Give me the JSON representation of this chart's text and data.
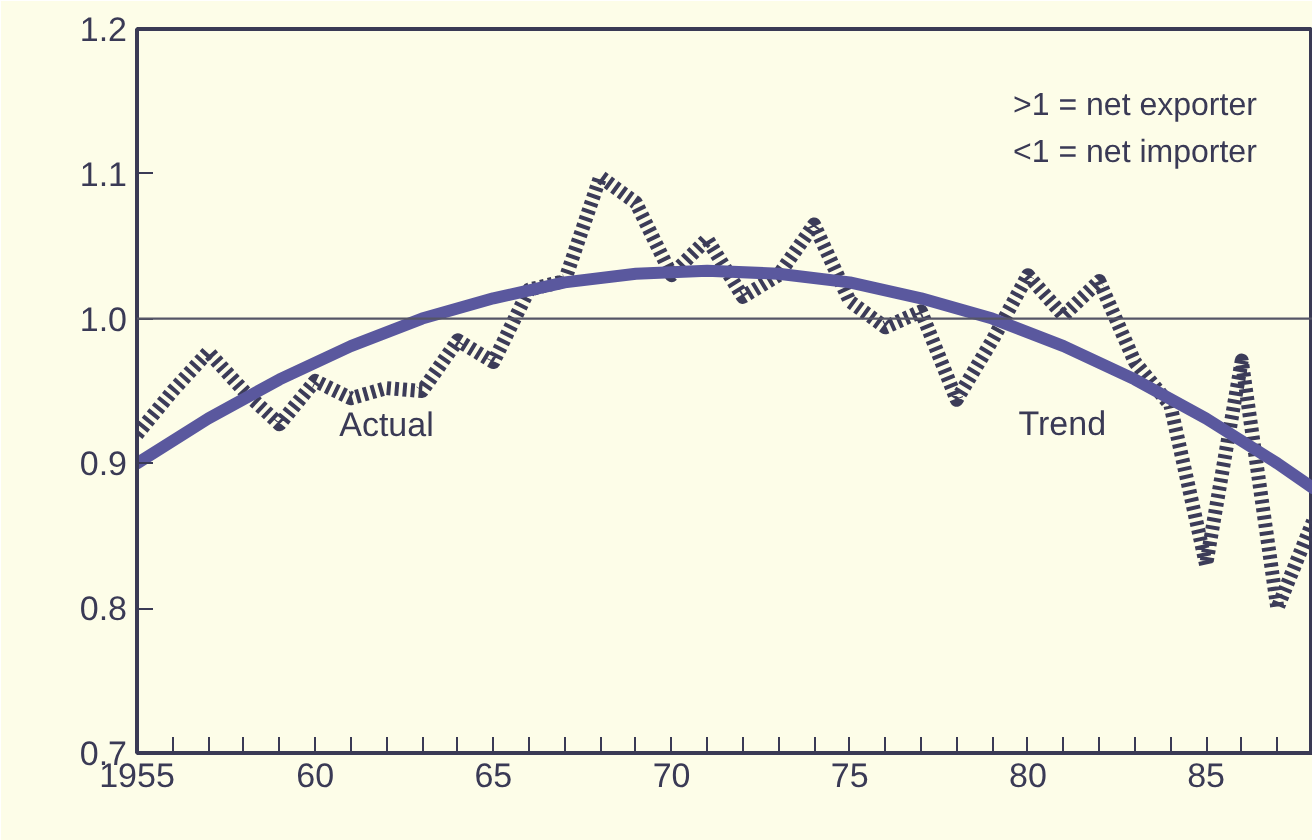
{
  "chart_data": {
    "type": "line",
    "x": [
      1955,
      1956,
      1957,
      1958,
      1959,
      1960,
      1961,
      1962,
      1963,
      1964,
      1965,
      1966,
      1967,
      1968,
      1969,
      1970,
      1971,
      1972,
      1973,
      1974,
      1975,
      1976,
      1977,
      1978,
      1979,
      1980,
      1981,
      1982,
      1983,
      1984,
      1985,
      1986,
      1987,
      1988
    ],
    "series": [
      {
        "name": "Actual",
        "color": "#3c3c58",
        "line_style": "dotted",
        "values": [
          0.92,
          0.95,
          0.977,
          0.95,
          0.927,
          0.957,
          0.945,
          0.952,
          0.95,
          0.985,
          0.97,
          1.02,
          1.026,
          1.098,
          1.08,
          1.03,
          1.055,
          1.015,
          1.03,
          1.065,
          1.012,
          0.994,
          1.005,
          0.944,
          0.985,
          1.03,
          1.002,
          1.026,
          0.97,
          0.94,
          0.83,
          0.971,
          0.8,
          0.86
        ]
      },
      {
        "name": "Trend",
        "color": "#5a589e",
        "line_style": "solid",
        "x": [
          1955,
          1957,
          1959,
          1961,
          1963,
          1965,
          1967,
          1969,
          1971,
          1973,
          1975,
          1977,
          1979,
          1981,
          1983,
          1985,
          1987,
          1988
        ],
        "values": [
          0.9,
          0.931,
          0.958,
          0.981,
          1.0,
          1.014,
          1.025,
          1.031,
          1.033,
          1.031,
          1.025,
          1.014,
          1.0,
          0.981,
          0.958,
          0.931,
          0.9,
          0.883
        ]
      }
    ],
    "xlim": [
      1955,
      1988
    ],
    "ylim": [
      0.7,
      1.2
    ],
    "xticks": [
      1955,
      {
        "value": 1956,
        "label": null
      },
      {
        "value": 1957,
        "label": null
      },
      {
        "value": 1958,
        "label": null
      },
      {
        "value": 1959,
        "label": null
      },
      {
        "value": 1960,
        "label": "60"
      },
      {
        "value": 1961,
        "label": null
      },
      {
        "value": 1962,
        "label": null
      },
      {
        "value": 1963,
        "label": null
      },
      {
        "value": 1964,
        "label": null
      },
      {
        "value": 1965,
        "label": "65"
      },
      {
        "value": 1966,
        "label": null
      },
      {
        "value": 1967,
        "label": null
      },
      {
        "value": 1968,
        "label": null
      },
      {
        "value": 1969,
        "label": null
      },
      {
        "value": 1970,
        "label": "70"
      },
      {
        "value": 1971,
        "label": null
      },
      {
        "value": 1972,
        "label": null
      },
      {
        "value": 1973,
        "label": null
      },
      {
        "value": 1974,
        "label": null
      },
      {
        "value": 1975,
        "label": "75"
      },
      {
        "value": 1976,
        "label": null
      },
      {
        "value": 1977,
        "label": null
      },
      {
        "value": 1978,
        "label": null
      },
      {
        "value": 1979,
        "label": null
      },
      {
        "value": 1980,
        "label": "80"
      },
      {
        "value": 1981,
        "label": null
      },
      {
        "value": 1982,
        "label": null
      },
      {
        "value": 1983,
        "label": null
      },
      {
        "value": 1984,
        "label": null
      },
      {
        "value": 1985,
        "label": "85"
      },
      {
        "value": 1986,
        "label": null
      },
      {
        "value": 1987,
        "label": null
      }
    ],
    "yticks": [
      0.7,
      0.8,
      0.9,
      {
        "value": 1,
        "label": "1.0"
      },
      1.1,
      1.2
    ],
    "ref_lines": [
      {
        "axis": "y",
        "value": 1,
        "label": null,
        "color": "#555566"
      }
    ],
    "annotations": [
      ">1 = net exporter",
      "<1 = net importer"
    ],
    "grid": false,
    "legend": false,
    "marker": "none"
  }
}
